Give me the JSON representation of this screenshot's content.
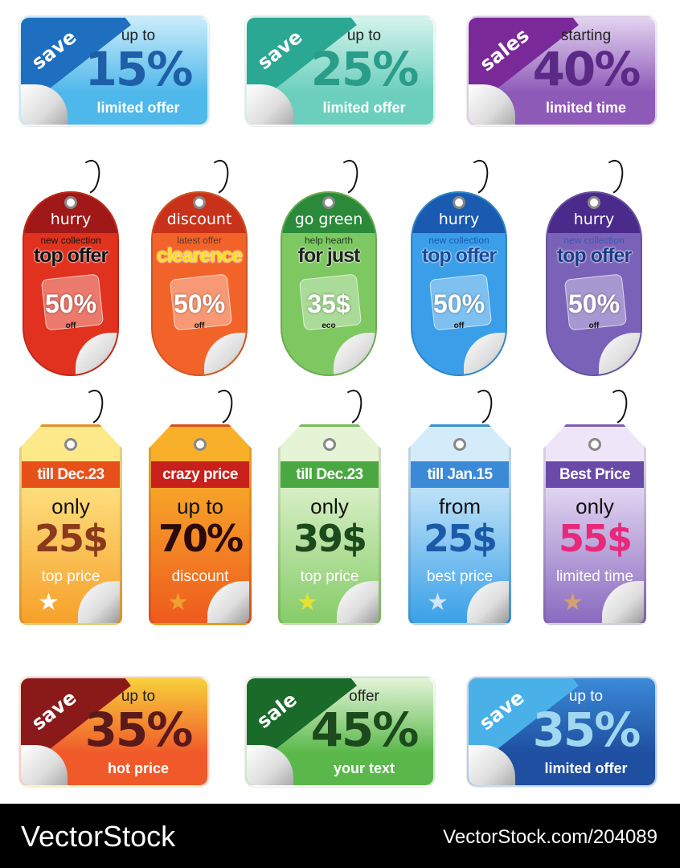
{
  "rect_cards_top": [
    {
      "badge": "save",
      "line1": "up to",
      "big": "15%",
      "line3": "limited offer",
      "bg": "#4fb8ea",
      "light": "#c9ecfb",
      "corner": "#1e6fc0",
      "text": "#1e5fa8"
    },
    {
      "badge": "save",
      "line1": "up to",
      "big": "25%",
      "line3": "limited offer",
      "bg": "#6ccfbd",
      "light": "#d4f3ec",
      "corner": "#2aa893",
      "text": "#2a9d8a"
    },
    {
      "badge": "sales",
      "line1": "starting",
      "big": "40%",
      "line3": "limited time",
      "bg": "#8e5ab8",
      "light": "#e3d4f0",
      "corner": "#7a2a98",
      "text": "#5b2a86"
    }
  ],
  "oval_tags": [
    {
      "header": "hurry",
      "sub": "new collection",
      "main": "top offer",
      "value": "50%",
      "unit": "off",
      "bg": "#e0321e",
      "band": "#a01818",
      "subColor": "#111",
      "mainColor": "#111"
    },
    {
      "header": "discount",
      "sub": "latest offer",
      "main": "clearence",
      "value": "50%",
      "unit": "off",
      "bg": "#f2632a",
      "band": "#c8321a",
      "subColor": "#5a3a2a",
      "mainColor": "#f8e020"
    },
    {
      "header": "go green",
      "sub": "help hearth",
      "main": "for just",
      "value": "35$",
      "unit": "eco",
      "bg": "#7ec862",
      "band": "#2a8a3a",
      "subColor": "#1a3a1a",
      "mainColor": "#222"
    },
    {
      "header": "hurry",
      "sub": "new collection",
      "main": "top offer",
      "value": "50%",
      "unit": "off",
      "bg": "#3a9ee8",
      "band": "#1a5ab0",
      "subColor": "#1a5ab0",
      "mainColor": "#1a4a9a"
    },
    {
      "header": "hurry",
      "sub": "new collection",
      "main": "top offer",
      "value": "50%",
      "unit": "off",
      "bg": "#7a62b8",
      "band": "#4a2a8a",
      "subColor": "#3a5ab0",
      "mainColor": "#1a3a8a"
    }
  ],
  "hang_tags": [
    {
      "band": "till Dec.23",
      "line1": "only",
      "price": "25$",
      "line3": "top price",
      "bg": "#f7a02a",
      "light": "#fde88a",
      "bandColor": "#e8501a",
      "priceColor": "#8a3a1a",
      "star": "#ffffff"
    },
    {
      "band": "crazy price",
      "line1": "up to",
      "price": "70%",
      "line3": "discount",
      "bg": "#ee5a1e",
      "light": "#f8b02a",
      "bandColor": "#c8201a",
      "priceColor": "#2a0a0a",
      "star": "#f0a030"
    },
    {
      "band": "till Dec.23",
      "line1": "only",
      "price": "39$",
      "line3": "top price",
      "bg": "#86cc68",
      "light": "#e4f4d4",
      "bandColor": "#4aa840",
      "priceColor": "#1c4a1c",
      "star": "#e8e030"
    },
    {
      "band": "till Jan.15",
      "line1": "from",
      "price": "25$",
      "line3": "best price",
      "bg": "#3aa0e8",
      "light": "#d4ecfa",
      "bandColor": "#3a8ad8",
      "priceColor": "#1a5aa8",
      "star": "#cfe6f8"
    },
    {
      "band": "Best Price",
      "line1": "only",
      "price": "55$",
      "line3": "limited time",
      "bg": "#8a6ac0",
      "light": "#eee6f8",
      "bandColor": "#6a4aa8",
      "priceColor": "#e8287a",
      "star": "#d4a070"
    }
  ],
  "rect_cards_bottom": [
    {
      "badge": "save",
      "line1": "up to",
      "big": "35%",
      "line3": "hot price",
      "bg": "#f05a2a",
      "light": "#f8d03a",
      "corner": "#8a1a1a",
      "text": "#5a1a1a"
    },
    {
      "badge": "sale",
      "line1": "offer",
      "big": "45%",
      "line3": "your text",
      "bg": "#5ab84a",
      "light": "#e4f4d8",
      "corner": "#1a6a2a",
      "text": "#1c4a1c"
    },
    {
      "badge": "save",
      "line1": "up to",
      "big": "35%",
      "line3": "limited offer",
      "bg": "#1f4fa0",
      "light": "#3a8ad8",
      "corner": "#4ab0e8",
      "text": "#9fd8f0"
    }
  ],
  "footer": {
    "logo": "VectorStock",
    "id": "VectorStock.com/204089"
  }
}
